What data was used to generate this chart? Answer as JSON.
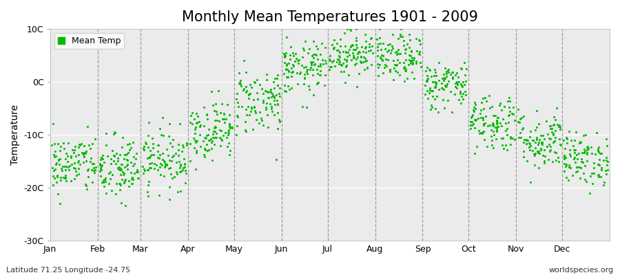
{
  "title": "Monthly Mean Temperatures 1901 - 2009",
  "ylabel": "Temperature",
  "ylim": [
    -30,
    10
  ],
  "yticks": [
    -30,
    -20,
    -10,
    0,
    10
  ],
  "ytick_labels": [
    "-30C",
    "-20C",
    "-10C",
    "0C",
    "10C"
  ],
  "months": [
    "Jan",
    "Feb",
    "Mar",
    "Apr",
    "May",
    "Jun",
    "Jul",
    "Aug",
    "Sep",
    "Oct",
    "Nov",
    "Dec"
  ],
  "month_means": [
    -15.5,
    -16.5,
    -14.5,
    -9.0,
    -3.5,
    2.5,
    5.5,
    4.5,
    -0.5,
    -7.5,
    -11.0,
    -14.5
  ],
  "month_stds": [
    2.8,
    3.2,
    2.8,
    2.8,
    3.2,
    2.5,
    2.2,
    2.2,
    2.3,
    2.8,
    2.8,
    2.5
  ],
  "n_years": 109,
  "dot_color": "#00bb00",
  "dot_size": 5,
  "bg_color": "#ebebeb",
  "bg_positive_color": "#e0e0e0",
  "legend_label": "Mean Temp",
  "bottom_left": "Latitude 71.25 Longitude -24.75",
  "bottom_right": "worldspecies.org",
  "title_fontsize": 15,
  "axis_fontsize": 10,
  "label_fontsize": 9,
  "seed": 42
}
